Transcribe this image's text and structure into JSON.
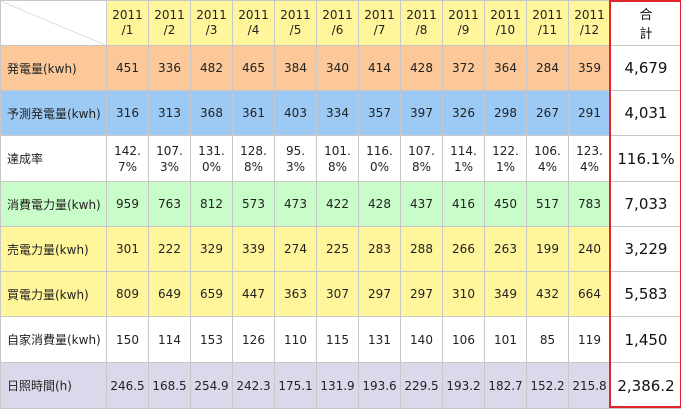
{
  "header": {
    "months": [
      "2011\n/1",
      "2011\n/2",
      "2011\n/3",
      "2011\n/4",
      "2011\n/5",
      "2011\n/6",
      "2011\n/7",
      "2011\n/8",
      "2011\n/9",
      "2011\n/10",
      "2011\n/11",
      "2011\n/12"
    ],
    "total_label": "合　計"
  },
  "rows": [
    {
      "label": "発電量(kwh)",
      "color": "#fcc89a",
      "values": [
        "451",
        "336",
        "482",
        "465",
        "384",
        "340",
        "414",
        "428",
        "372",
        "364",
        "284",
        "359"
      ],
      "total": "4,679"
    },
    {
      "label": "予測発電量(kwh)",
      "color": "#9ccaf5",
      "values": [
        "316",
        "313",
        "368",
        "361",
        "403",
        "334",
        "357",
        "397",
        "326",
        "298",
        "267",
        "291"
      ],
      "total": "4,031"
    },
    {
      "label": "達成率",
      "color": "#ffffff",
      "values": [
        "142.\n7%",
        "107.\n3%",
        "131.\n0%",
        "128.\n8%",
        "95.\n3%",
        "101.\n8%",
        "116.\n0%",
        "107.\n8%",
        "114.\n1%",
        "122.\n1%",
        "106.\n4%",
        "123.\n4%"
      ],
      "total": "116.1%"
    },
    {
      "label": "消費電力量(kwh)",
      "color": "#c8fcc8",
      "values": [
        "959",
        "763",
        "812",
        "573",
        "473",
        "422",
        "428",
        "437",
        "416",
        "450",
        "517",
        "783"
      ],
      "total": "7,033"
    },
    {
      "label": "売電力量(kwh)",
      "color": "#fff59a",
      "values": [
        "301",
        "222",
        "329",
        "339",
        "274",
        "225",
        "283",
        "288",
        "266",
        "263",
        "199",
        "240"
      ],
      "total": "3,229"
    },
    {
      "label": "買電力量(kwh)",
      "color": "#fff59a",
      "values": [
        "809",
        "649",
        "659",
        "447",
        "363",
        "307",
        "297",
        "297",
        "310",
        "349",
        "432",
        "664"
      ],
      "total": "5,583"
    },
    {
      "label": "自家消費量(kwh)",
      "color": "#ffffff",
      "values": [
        "150",
        "114",
        "153",
        "126",
        "110",
        "115",
        "131",
        "140",
        "106",
        "101",
        "85",
        "119"
      ],
      "total": "1,450"
    },
    {
      "label": "日照時間(h)",
      "color": "#dcd8ec",
      "values": [
        "246.5",
        "168.5",
        "254.9",
        "242.3",
        "175.1",
        "131.9",
        "193.6",
        "229.5",
        "193.2",
        "182.7",
        "152.2",
        "215.8"
      ],
      "total": "2,386.2"
    }
  ],
  "colors": {
    "highlight_border": "#e0262b",
    "header_bg": "#fff59a",
    "grid": "#c8c8c8"
  }
}
